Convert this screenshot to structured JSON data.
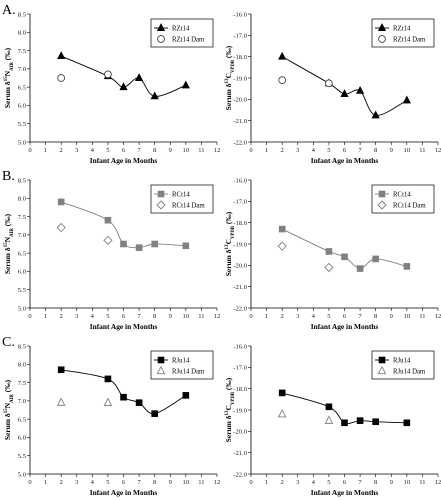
{
  "figure": {
    "x_axis_label": "Infant Age in Months"
  },
  "chart_data": [
    {
      "panel_letter": "A.",
      "type": "line",
      "ylabel": "Serum δ15N_AIR (‰)",
      "xlim": [
        0,
        12
      ],
      "ylim": [
        5.0,
        8.5
      ],
      "x_ticks": [
        0,
        1,
        2,
        3,
        4,
        5,
        6,
        7,
        8,
        9,
        10,
        11,
        12
      ],
      "y_ticks": [
        "5.0",
        "5.5",
        "6.0",
        "6.5",
        "7.0",
        "7.5",
        "8.0",
        "8.5"
      ],
      "legend_position": "top-right",
      "series": [
        {
          "name": "RZt14",
          "marker": "triangle",
          "color": "#000000",
          "line": true,
          "x": [
            2,
            5,
            6,
            7,
            8,
            10
          ],
          "y": [
            7.35,
            6.8,
            6.5,
            6.75,
            6.25,
            6.55
          ]
        },
        {
          "name": "RZt14 Dam",
          "marker": "circle-open",
          "color": "#444444",
          "line": false,
          "x": [
            2,
            5
          ],
          "y": [
            6.75,
            6.85
          ]
        }
      ]
    },
    {
      "type": "line",
      "ylabel": "Serum δ13C_VPDB (‰)",
      "xlim": [
        0,
        12
      ],
      "ylim": [
        -22.0,
        -16.0
      ],
      "x_ticks": [
        0,
        1,
        2,
        3,
        4,
        5,
        6,
        7,
        8,
        9,
        10,
        11,
        12
      ],
      "y_ticks": [
        "-16.0",
        "-17.0",
        "-18.0",
        "-19.0",
        "-20.0",
        "-21.0",
        "-22.0"
      ],
      "legend_position": "top-right",
      "series": [
        {
          "name": "RZt14",
          "marker": "triangle",
          "color": "#000000",
          "line": true,
          "x": [
            2,
            5,
            6,
            7,
            8,
            10
          ],
          "y": [
            -18.0,
            -19.25,
            -19.75,
            -19.6,
            -20.75,
            -20.05
          ]
        },
        {
          "name": "RZt14 Dam",
          "marker": "circle-open",
          "color": "#444444",
          "line": false,
          "x": [
            2,
            5
          ],
          "y": [
            -19.1,
            -19.25
          ]
        }
      ]
    },
    {
      "panel_letter": "B.",
      "type": "line",
      "ylabel": "Serum δ15N_AIR (‰)",
      "xlim": [
        0,
        12
      ],
      "ylim": [
        5.0,
        8.5
      ],
      "x_ticks": [
        0,
        1,
        2,
        3,
        4,
        5,
        6,
        7,
        8,
        9,
        10,
        11,
        12
      ],
      "y_ticks": [
        "5.0",
        "5.5",
        "6.0",
        "6.5",
        "7.0",
        "7.5",
        "8.0",
        "8.5"
      ],
      "legend_position": "top-right",
      "series": [
        {
          "name": "RCt14",
          "marker": "square",
          "color": "#808080",
          "line": true,
          "x": [
            2,
            5,
            6,
            7,
            8,
            10
          ],
          "y": [
            7.9,
            7.4,
            6.75,
            6.65,
            6.75,
            6.7
          ]
        },
        {
          "name": "RCt14 Dam",
          "marker": "diamond-open",
          "color": "#808080",
          "line": false,
          "x": [
            2,
            5
          ],
          "y": [
            7.2,
            6.85
          ]
        }
      ]
    },
    {
      "type": "line",
      "ylabel": "Serum δ13C_VPDB (‰)",
      "xlim": [
        0,
        12
      ],
      "ylim": [
        -22.0,
        -16.0
      ],
      "x_ticks": [
        0,
        1,
        2,
        3,
        4,
        5,
        6,
        7,
        8,
        9,
        10,
        11,
        12
      ],
      "y_ticks": [
        "-16.0",
        "-17.0",
        "-18.0",
        "-19.0",
        "-20.0",
        "-21.0",
        "-22.0"
      ],
      "legend_position": "top-right",
      "series": [
        {
          "name": "RCt14",
          "marker": "square",
          "color": "#808080",
          "line": true,
          "x": [
            2,
            5,
            6,
            7,
            8,
            10
          ],
          "y": [
            -18.3,
            -19.35,
            -19.6,
            -20.15,
            -19.7,
            -20.05
          ]
        },
        {
          "name": "RCt14 Dam",
          "marker": "diamond-open",
          "color": "#808080",
          "line": false,
          "x": [
            2,
            5
          ],
          "y": [
            -19.1,
            -20.1
          ]
        }
      ]
    },
    {
      "panel_letter": "C.",
      "type": "line",
      "ylabel": "Serum δ15N_AIR (‰)",
      "xlim": [
        0,
        12
      ],
      "ylim": [
        5.0,
        8.5
      ],
      "x_ticks": [
        0,
        1,
        2,
        3,
        4,
        5,
        6,
        7,
        8,
        9,
        10,
        11,
        12
      ],
      "y_ticks": [
        "5.0",
        "5.5",
        "6.0",
        "6.5",
        "7.0",
        "7.5",
        "8.0",
        "8.5"
      ],
      "legend_position": "top-right",
      "series": [
        {
          "name": "RJu14",
          "marker": "square",
          "color": "#000000",
          "line": true,
          "x": [
            2,
            5,
            6,
            7,
            8,
            10
          ],
          "y": [
            7.85,
            7.6,
            7.1,
            6.95,
            6.65,
            7.15
          ]
        },
        {
          "name": "RJu14 Dam",
          "marker": "triangle-open",
          "color": "#808080",
          "line": false,
          "x": [
            2,
            5
          ],
          "y": [
            6.95,
            6.95
          ]
        }
      ]
    },
    {
      "type": "line",
      "ylabel": "Serum δ13C_VPDB (‰)",
      "xlim": [
        0,
        12
      ],
      "ylim": [
        -22.0,
        -16.0
      ],
      "x_ticks": [
        0,
        1,
        2,
        3,
        4,
        5,
        6,
        7,
        8,
        9,
        10,
        11,
        12
      ],
      "y_ticks": [
        "-16.0",
        "-17.0",
        "-18.0",
        "-19.0",
        "-20.0",
        "-21.0",
        "-22.0"
      ],
      "legend_position": "top-right",
      "series": [
        {
          "name": "RJu14",
          "marker": "square",
          "color": "#000000",
          "line": true,
          "x": [
            2,
            5,
            6,
            7,
            8,
            10
          ],
          "y": [
            -18.2,
            -18.85,
            -19.6,
            -19.5,
            -19.55,
            -19.6
          ]
        },
        {
          "name": "RJu14 Dam",
          "marker": "triangle-open",
          "color": "#808080",
          "line": false,
          "x": [
            2,
            5
          ],
          "y": [
            -19.2,
            -19.5
          ]
        }
      ]
    }
  ]
}
